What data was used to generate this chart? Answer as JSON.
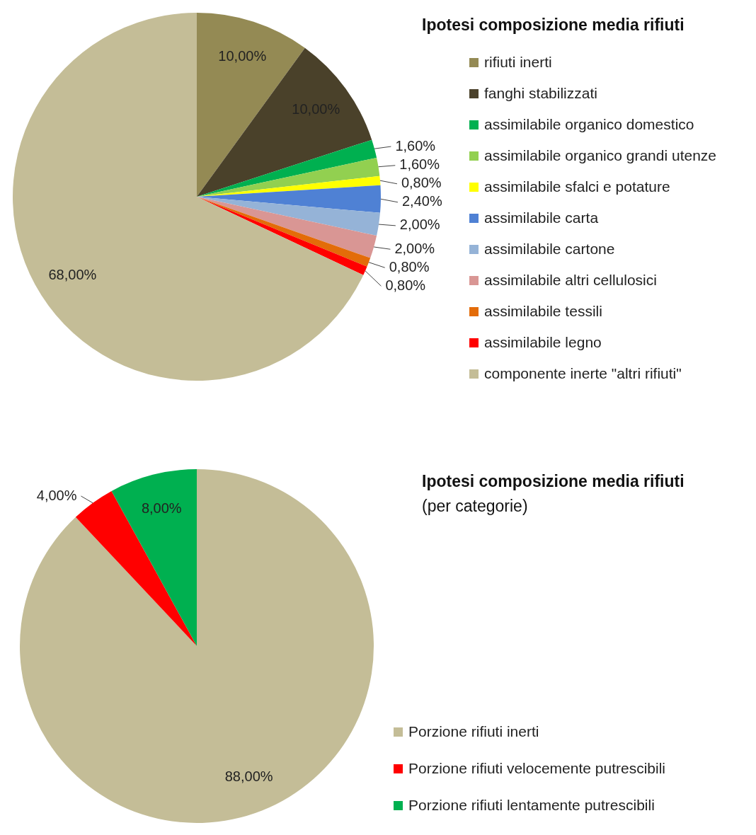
{
  "chart_data": [
    {
      "type": "pie",
      "title": "Ipotesi composizione media rifiuti",
      "legend": "right",
      "categories": [
        "rifiuti inerti",
        "fanghi stabilizzati",
        "assimilabile organico domestico",
        "assimilabile organico grandi utenze",
        "assimilabile sfalci e potature",
        "assimilabile carta",
        "assimilabile cartone",
        "assimilabile altri cellulosici",
        "assimilabile tessili",
        "assimilabile legno",
        "componente inerte \"altri rifiuti\""
      ],
      "values": [
        10,
        10,
        1.6,
        1.6,
        0.8,
        2.4,
        2,
        2,
        0.8,
        0.8,
        68
      ],
      "value_labels": [
        "10,00%",
        "10,00%",
        "1,60%",
        "1,60%",
        "0,80%",
        "2,40%",
        "2,00%",
        "2,00%",
        "0,80%",
        "0,80%",
        "68,00%"
      ],
      "colors": [
        "#948a54",
        "#4a412a",
        "#00b050",
        "#92d050",
        "#ffff00",
        "#4f81d4",
        "#95b3d7",
        "#d99694",
        "#e36c09",
        "#ff0000",
        "#c4bd97"
      ]
    },
    {
      "type": "pie",
      "title": "Ipotesi composizione media rifiuti",
      "subtitle": "(per categorie)",
      "legend": "bottom right",
      "categories": [
        "Porzione rifiuti inerti",
        "Porzione rifiuti velocemente putrescibili",
        "Porzione rifiuti lentamente putrescibili"
      ],
      "values": [
        88,
        4,
        8
      ],
      "value_labels": [
        "88,00%",
        "4,00%",
        "8,00%"
      ],
      "colors": [
        "#c4bd97",
        "#ff0000",
        "#00b050"
      ]
    }
  ]
}
